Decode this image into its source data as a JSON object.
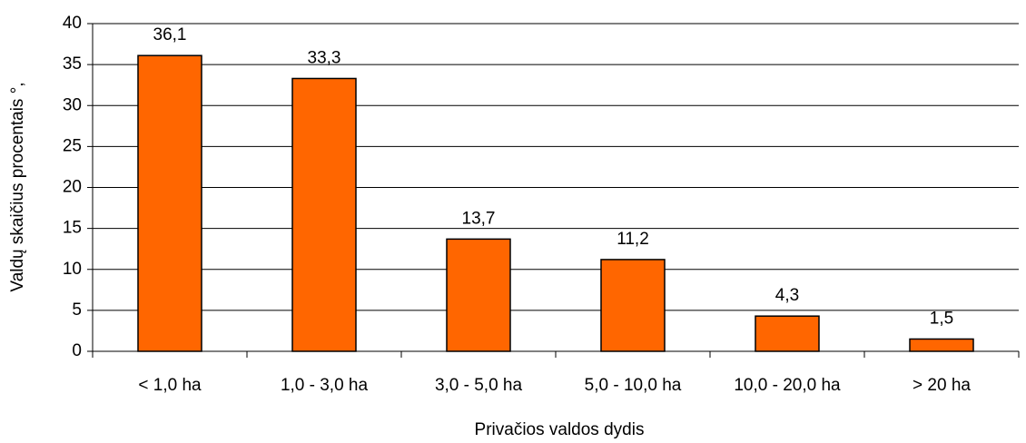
{
  "chart_data": {
    "type": "bar",
    "categories": [
      "< 1,0 ha",
      "1,0 - 3,0 ha",
      "3,0 - 5,0 ha",
      "5,0 - 10,0 ha",
      "10,0 - 20,0 ha",
      "> 20 ha"
    ],
    "values": [
      36.1,
      33.3,
      13.7,
      11.2,
      4.3,
      1.5
    ],
    "value_labels": [
      "36,1",
      "33,3",
      "13,7",
      "11,2",
      "4,3",
      "1,5"
    ],
    "color": "#ff6600",
    "x_label": "Privačios valdos dydis",
    "y_label": "Valdų skaičius procentais °,",
    "ylim": [
      0,
      40
    ],
    "yticks": [
      0,
      5,
      10,
      15,
      20,
      25,
      30,
      35,
      40
    ],
    "grid": true
  }
}
